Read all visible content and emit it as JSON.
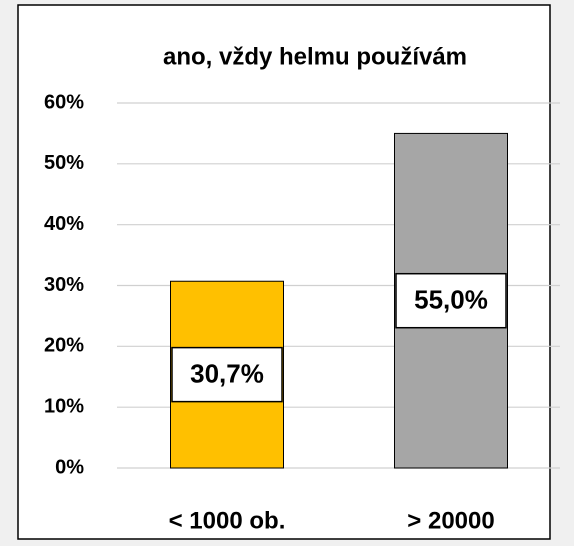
{
  "chart_data": {
    "type": "bar",
    "title": "ano, vždy helmu používám",
    "categories": [
      "< 1000 ob.",
      "> 20000"
    ],
    "values": [
      30.7,
      55.0
    ],
    "value_labels": [
      "30,7%",
      "55,0%"
    ],
    "colors": [
      "#FFC000",
      "#A6A6A6"
    ],
    "ylim": [
      0,
      60
    ],
    "yticks": [
      {
        "value": 0,
        "label": "0%"
      },
      {
        "value": 10,
        "label": "10%"
      },
      {
        "value": 20,
        "label": "20%"
      },
      {
        "value": 30,
        "label": "30%"
      },
      {
        "value": 40,
        "label": "40%"
      },
      {
        "value": 50,
        "label": "50%"
      },
      {
        "value": 60,
        "label": "60%"
      }
    ],
    "grid": true
  }
}
